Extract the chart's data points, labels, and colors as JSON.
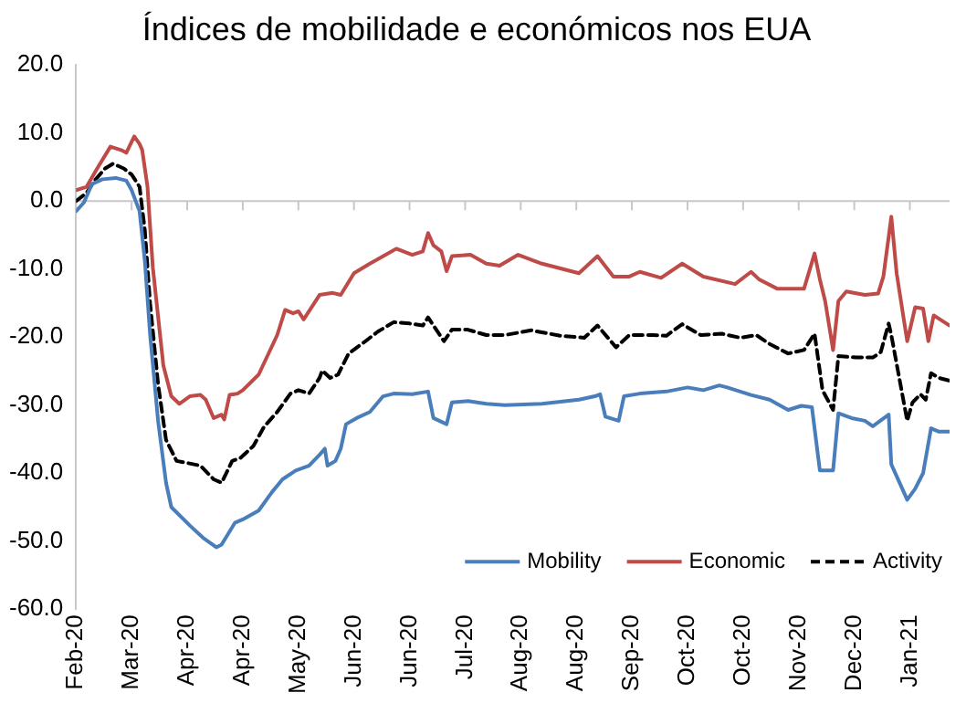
{
  "chart_data": {
    "type": "line",
    "title": "Índices de mobilidade e económicos nos EUA",
    "xlim": [
      "2020-02-22",
      "2021-01-17"
    ],
    "xticks": [
      {
        "value": "2020-02-22",
        "label": "Feb-20"
      },
      {
        "value": "2020-03-14",
        "label": "Mar-20"
      },
      {
        "value": "2020-04-04",
        "label": "Apr-20"
      },
      {
        "value": "2020-04-25",
        "label": "Apr-20"
      },
      {
        "value": "2020-05-16",
        "label": "May-20"
      },
      {
        "value": "2020-06-06",
        "label": "Jun-20"
      },
      {
        "value": "2020-06-27",
        "label": "Jun-20"
      },
      {
        "value": "2020-07-18",
        "label": "Jul-20"
      },
      {
        "value": "2020-08-08",
        "label": "Aug-20"
      },
      {
        "value": "2020-08-29",
        "label": "Aug-20"
      },
      {
        "value": "2020-09-19",
        "label": "Sep-20"
      },
      {
        "value": "2020-10-10",
        "label": "Oct-20"
      },
      {
        "value": "2020-10-31",
        "label": "Oct-20"
      },
      {
        "value": "2020-11-21",
        "label": "Nov-20"
      },
      {
        "value": "2020-12-12",
        "label": "Dec-20"
      },
      {
        "value": "2021-01-02",
        "label": "Jan-21"
      }
    ],
    "ylim": [
      -60,
      20
    ],
    "yticks": [
      {
        "value": -60,
        "label": "-60.0"
      },
      {
        "value": -50,
        "label": "-50.0"
      },
      {
        "value": -40,
        "label": "-40.0"
      },
      {
        "value": -30,
        "label": "-30.0"
      },
      {
        "value": -20,
        "label": "-20.0"
      },
      {
        "value": -10,
        "label": "-10.0"
      },
      {
        "value": 0,
        "label": "0.0"
      },
      {
        "value": 10,
        "label": "10.0"
      },
      {
        "value": 20,
        "label": "20.0"
      }
    ],
    "legend": "bottom right",
    "marker": "none",
    "series": [
      {
        "name": "Mobility",
        "color": "#4a7ebb",
        "line_style": "solid",
        "x": [
          "2020-02-22",
          "2020-02-25",
          "2020-02-28",
          "2020-03-03",
          "2020-03-08",
          "2020-03-12",
          "2020-03-14",
          "2020-03-17",
          "2020-03-19",
          "2020-03-21",
          "2020-03-24",
          "2020-03-27",
          "2020-03-29",
          "2020-04-05",
          "2020-04-10",
          "2020-04-15",
          "2020-04-17",
          "2020-04-22",
          "2020-04-25",
          "2020-05-01",
          "2020-05-06",
          "2020-05-10",
          "2020-05-15",
          "2020-05-20",
          "2020-05-24",
          "2020-05-26",
          "2020-05-27",
          "2020-05-30",
          "2020-06-01",
          "2020-06-03",
          "2020-06-07",
          "2020-06-12",
          "2020-06-17",
          "2020-06-21",
          "2020-06-28",
          "2020-07-04",
          "2020-07-06",
          "2020-07-11",
          "2020-07-13",
          "2020-07-19",
          "2020-07-26",
          "2020-08-02",
          "2020-08-16",
          "2020-08-30",
          "2020-09-05",
          "2020-09-07",
          "2020-09-09",
          "2020-09-14",
          "2020-09-16",
          "2020-09-22",
          "2020-10-02",
          "2020-10-10",
          "2020-10-16",
          "2020-10-22",
          "2020-10-25",
          "2020-11-03",
          "2020-11-10",
          "2020-11-17",
          "2020-11-22",
          "2020-11-26",
          "2020-11-29",
          "2020-12-04",
          "2020-12-06",
          "2020-12-11",
          "2020-12-16",
          "2020-12-19",
          "2020-12-25",
          "2020-12-26",
          "2021-01-01",
          "2021-01-04",
          "2021-01-07",
          "2021-01-10",
          "2021-01-13",
          "2021-01-17"
        ],
        "values": [
          -1.5,
          -0.2,
          2.5,
          3.2,
          3.4,
          3.0,
          1.6,
          -1.5,
          -8.8,
          -19.7,
          -32.3,
          -41.4,
          -45.0,
          -47.7,
          -49.5,
          -50.9,
          -50.5,
          -47.3,
          -46.8,
          -45.5,
          -42.8,
          -40.9,
          -39.6,
          -38.9,
          -37.3,
          -36.4,
          -38.9,
          -38.2,
          -36.4,
          -32.8,
          -31.9,
          -31.0,
          -28.7,
          -28.3,
          -28.4,
          -28.0,
          -31.9,
          -32.8,
          -29.6,
          -29.4,
          -29.8,
          -30.0,
          -29.8,
          -29.2,
          -28.7,
          -28.4,
          -31.7,
          -32.3,
          -28.7,
          -28.3,
          -28.0,
          -27.4,
          -27.8,
          -27.1,
          -27.4,
          -28.5,
          -29.2,
          -30.7,
          -30.1,
          -30.3,
          -39.6,
          -39.6,
          -31.2,
          -31.9,
          -32.3,
          -33.1,
          -31.4,
          -38.7,
          -43.9,
          -42.3,
          -40.0,
          -33.4,
          -33.9,
          -33.9
        ]
      },
      {
        "name": "Economic",
        "color": "#be4b48",
        "line_style": "solid",
        "x": [
          "2020-02-22",
          "2020-02-26",
          "2020-03-01",
          "2020-03-06",
          "2020-03-10",
          "2020-03-12",
          "2020-03-15",
          "2020-03-17",
          "2020-03-18",
          "2020-03-20",
          "2020-03-22",
          "2020-03-26",
          "2020-03-29",
          "2020-04-01",
          "2020-04-05",
          "2020-04-09",
          "2020-04-11",
          "2020-04-14",
          "2020-04-17",
          "2020-04-18",
          "2020-04-20",
          "2020-04-23",
          "2020-04-25",
          "2020-05-01",
          "2020-05-08",
          "2020-05-11",
          "2020-05-14",
          "2020-05-16",
          "2020-05-18",
          "2020-05-24",
          "2020-05-29",
          "2020-06-01",
          "2020-06-06",
          "2020-06-12",
          "2020-06-18",
          "2020-06-22",
          "2020-06-28",
          "2020-07-02",
          "2020-07-04",
          "2020-07-06",
          "2020-07-09",
          "2020-07-11",
          "2020-07-13",
          "2020-07-20",
          "2020-07-26",
          "2020-07-31",
          "2020-08-07",
          "2020-08-16",
          "2020-08-30",
          "2020-09-06",
          "2020-09-12",
          "2020-09-18",
          "2020-09-22",
          "2020-09-30",
          "2020-10-08",
          "2020-10-16",
          "2020-10-28",
          "2020-11-03",
          "2020-11-06",
          "2020-11-13",
          "2020-11-23",
          "2020-11-27",
          "2020-11-29",
          "2020-12-01",
          "2020-12-04",
          "2020-12-06",
          "2020-12-09",
          "2020-12-16",
          "2020-12-21",
          "2020-12-23",
          "2020-12-26",
          "2020-12-28",
          "2021-01-01",
          "2021-01-04",
          "2021-01-07",
          "2021-01-09",
          "2021-01-11",
          "2021-01-17"
        ],
        "values": [
          1.6,
          2.1,
          4.8,
          8.0,
          7.5,
          7.1,
          9.5,
          8.4,
          7.5,
          2.1,
          -9.7,
          -24.2,
          -28.7,
          -29.8,
          -28.7,
          -28.5,
          -29.2,
          -31.9,
          -31.4,
          -32.1,
          -28.5,
          -28.3,
          -27.8,
          -25.5,
          -19.7,
          -16.0,
          -16.5,
          -16.2,
          -17.4,
          -13.8,
          -13.5,
          -13.8,
          -10.6,
          -9.2,
          -7.9,
          -7.0,
          -7.9,
          -7.4,
          -4.7,
          -6.5,
          -7.4,
          -10.3,
          -8.1,
          -7.9,
          -9.2,
          -9.5,
          -7.9,
          -9.2,
          -10.6,
          -8.1,
          -11.1,
          -11.1,
          -10.4,
          -11.3,
          -9.2,
          -11.1,
          -12.2,
          -10.4,
          -11.5,
          -12.9,
          -12.9,
          -7.7,
          -11.5,
          -14.7,
          -21.9,
          -14.7,
          -13.3,
          -13.8,
          -13.6,
          -11.1,
          -2.3,
          -10.6,
          -20.6,
          -15.6,
          -15.8,
          -20.6,
          -16.8,
          -18.3
        ]
      },
      {
        "name": "Activity",
        "color": "#000000",
        "line_style": "dashed",
        "x": [
          "2020-02-22",
          "2020-02-26",
          "2020-02-29",
          "2020-03-04",
          "2020-03-07",
          "2020-03-11",
          "2020-03-14",
          "2020-03-17",
          "2020-03-19",
          "2020-03-21",
          "2020-03-24",
          "2020-03-27",
          "2020-03-31",
          "2020-04-04",
          "2020-04-09",
          "2020-04-14",
          "2020-04-17",
          "2020-04-21",
          "2020-04-24",
          "2020-04-29",
          "2020-05-03",
          "2020-05-08",
          "2020-05-13",
          "2020-05-16",
          "2020-05-20",
          "2020-05-24",
          "2020-05-25",
          "2020-05-28",
          "2020-05-31",
          "2020-06-04",
          "2020-06-10",
          "2020-06-15",
          "2020-06-21",
          "2020-06-27",
          "2020-07-02",
          "2020-07-04",
          "2020-07-10",
          "2020-07-13",
          "2020-07-19",
          "2020-07-26",
          "2020-08-02",
          "2020-08-12",
          "2020-08-23",
          "2020-09-01",
          "2020-09-06",
          "2020-09-13",
          "2020-09-18",
          "2020-09-27",
          "2020-10-02",
          "2020-10-08",
          "2020-10-15",
          "2020-10-23",
          "2020-10-30",
          "2020-11-05",
          "2020-11-10",
          "2020-11-17",
          "2020-11-23",
          "2020-11-27",
          "2020-11-30",
          "2020-12-04",
          "2020-12-06",
          "2020-12-13",
          "2020-12-19",
          "2020-12-22",
          "2020-12-25",
          "2020-12-26",
          "2021-01-01",
          "2021-01-03",
          "2021-01-06",
          "2021-01-08",
          "2021-01-10",
          "2021-01-13",
          "2021-01-17"
        ],
        "values": [
          0.0,
          1.2,
          3.0,
          4.8,
          5.5,
          4.8,
          3.9,
          2.1,
          -4.3,
          -15.1,
          -26.9,
          -35.1,
          -38.2,
          -38.5,
          -38.9,
          -40.9,
          -41.4,
          -38.2,
          -37.8,
          -36.0,
          -33.2,
          -31.0,
          -28.3,
          -27.8,
          -28.3,
          -26.0,
          -24.9,
          -26.0,
          -25.5,
          -22.4,
          -20.7,
          -19.2,
          -17.8,
          -18.0,
          -18.3,
          -17.1,
          -20.6,
          -18.9,
          -18.9,
          -19.7,
          -19.7,
          -19.0,
          -19.8,
          -20.1,
          -18.3,
          -21.5,
          -19.7,
          -19.7,
          -19.8,
          -18.1,
          -19.7,
          -19.5,
          -20.1,
          -19.7,
          -21.0,
          -22.4,
          -21.9,
          -19.5,
          -27.8,
          -30.7,
          -22.8,
          -23.0,
          -23.0,
          -22.2,
          -18.0,
          -19.7,
          -32.3,
          -29.6,
          -28.4,
          -29.2,
          -25.3,
          -26.0,
          -26.4
        ]
      }
    ]
  }
}
